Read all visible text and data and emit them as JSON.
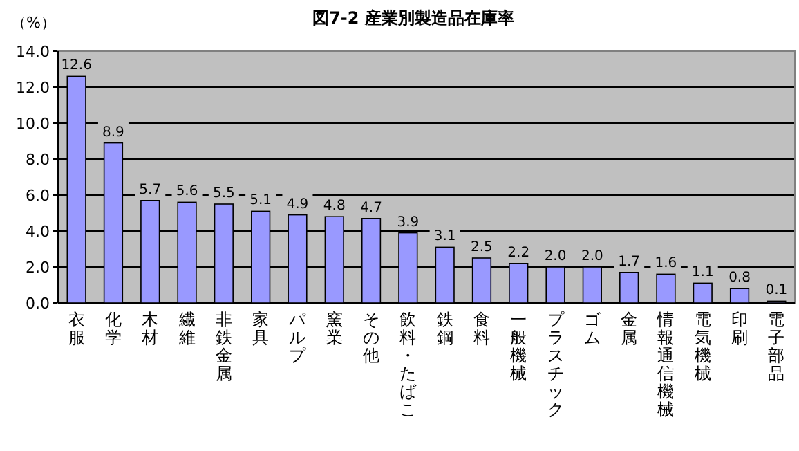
{
  "chart_data": {
    "type": "bar",
    "title": "図7-2 産業別製造品在庫率",
    "ylabel": "（%）",
    "categories": [
      "衣服",
      "化学",
      "木材",
      "繊維",
      "非鉄金属",
      "家具",
      "パルプ",
      "窯業",
      "その他",
      "飲料・たばこ",
      "鉄鋼",
      "食料",
      "一般機械",
      "プラスチック",
      "ゴム",
      "金属",
      "情報通信機械",
      "電気機械",
      "印刷",
      "電子部品"
    ],
    "values": [
      12.6,
      8.9,
      5.7,
      5.6,
      5.5,
      5.1,
      4.9,
      4.8,
      4.7,
      3.9,
      3.1,
      2.5,
      2.2,
      2.0,
      2.0,
      1.7,
      1.6,
      1.1,
      0.8,
      0.1
    ],
    "value_labels": [
      "12.6",
      "8.9",
      "5.7",
      "5.6",
      "5.5",
      "5.1",
      "4.9",
      "4.8",
      "4.7",
      "3.9",
      "3.1",
      "2.5",
      "2.2",
      "2.0",
      "2.0",
      "1.7",
      "1.6",
      "1.1",
      "0.8",
      "0.1"
    ],
    "color": "#9999ff",
    "ylim": [
      0,
      14
    ],
    "yticks": [
      {
        "value": 0,
        "label": "0.0"
      },
      {
        "value": 2,
        "label": "2.0"
      },
      {
        "value": 4,
        "label": "4.0"
      },
      {
        "value": 6,
        "label": "6.0"
      },
      {
        "value": 8,
        "label": "8.0"
      },
      {
        "value": 10,
        "label": "10.0"
      },
      {
        "value": 12,
        "label": "12.0"
      },
      {
        "value": 14,
        "label": "14.0"
      }
    ],
    "grid": "y"
  }
}
